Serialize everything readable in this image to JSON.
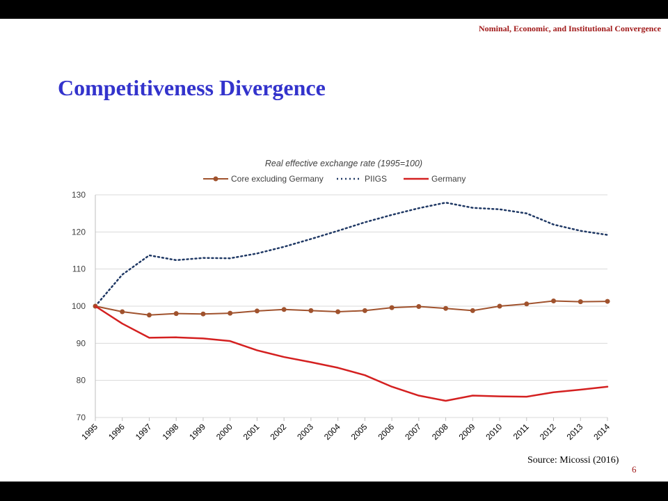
{
  "header": "Nominal, Economic, and Institutional Convergence",
  "title": "Competitiveness Divergence",
  "source": "Source: Micossi (2016)",
  "page_number": "6",
  "chart_data": {
    "type": "line",
    "title": "Real effective exchange rate (1995=100)",
    "xlabel": "",
    "ylabel": "",
    "categories": [
      "1995",
      "1996",
      "1997",
      "1998",
      "1999",
      "2000",
      "2001",
      "2002",
      "2003",
      "2004",
      "2005",
      "2006",
      "2007",
      "2008",
      "2009",
      "2010",
      "2011",
      "2012",
      "2013",
      "2014"
    ],
    "ylim": [
      70,
      130
    ],
    "yticks": [
      70,
      80,
      90,
      100,
      110,
      120,
      130
    ],
    "grid": true,
    "legend_position": "top",
    "series": [
      {
        "name": "Core excluding Germany",
        "color": "#a0522d",
        "style": "solid-markers",
        "values": [
          100,
          98.5,
          97.6,
          98.0,
          97.9,
          98.1,
          98.7,
          99.1,
          98.8,
          98.5,
          98.8,
          99.6,
          99.9,
          99.4,
          98.8,
          100.0,
          100.6,
          101.4,
          101.2,
          101.3
        ]
      },
      {
        "name": "PIIGS",
        "color": "#1f3864",
        "style": "dotted",
        "values": [
          100,
          108.5,
          113.7,
          112.4,
          113.0,
          112.9,
          114.2,
          116.0,
          118.1,
          120.3,
          122.6,
          124.6,
          126.4,
          127.9,
          126.5,
          126.1,
          125.0,
          122.0,
          120.3,
          119.2
        ]
      },
      {
        "name": "Germany",
        "color": "#d42020",
        "style": "solid",
        "values": [
          100,
          95.3,
          91.5,
          91.6,
          91.3,
          90.6,
          88.1,
          86.3,
          84.9,
          83.4,
          81.4,
          78.3,
          75.9,
          74.5,
          75.9,
          75.7,
          75.6,
          76.8,
          77.5,
          78.3
        ]
      }
    ]
  }
}
